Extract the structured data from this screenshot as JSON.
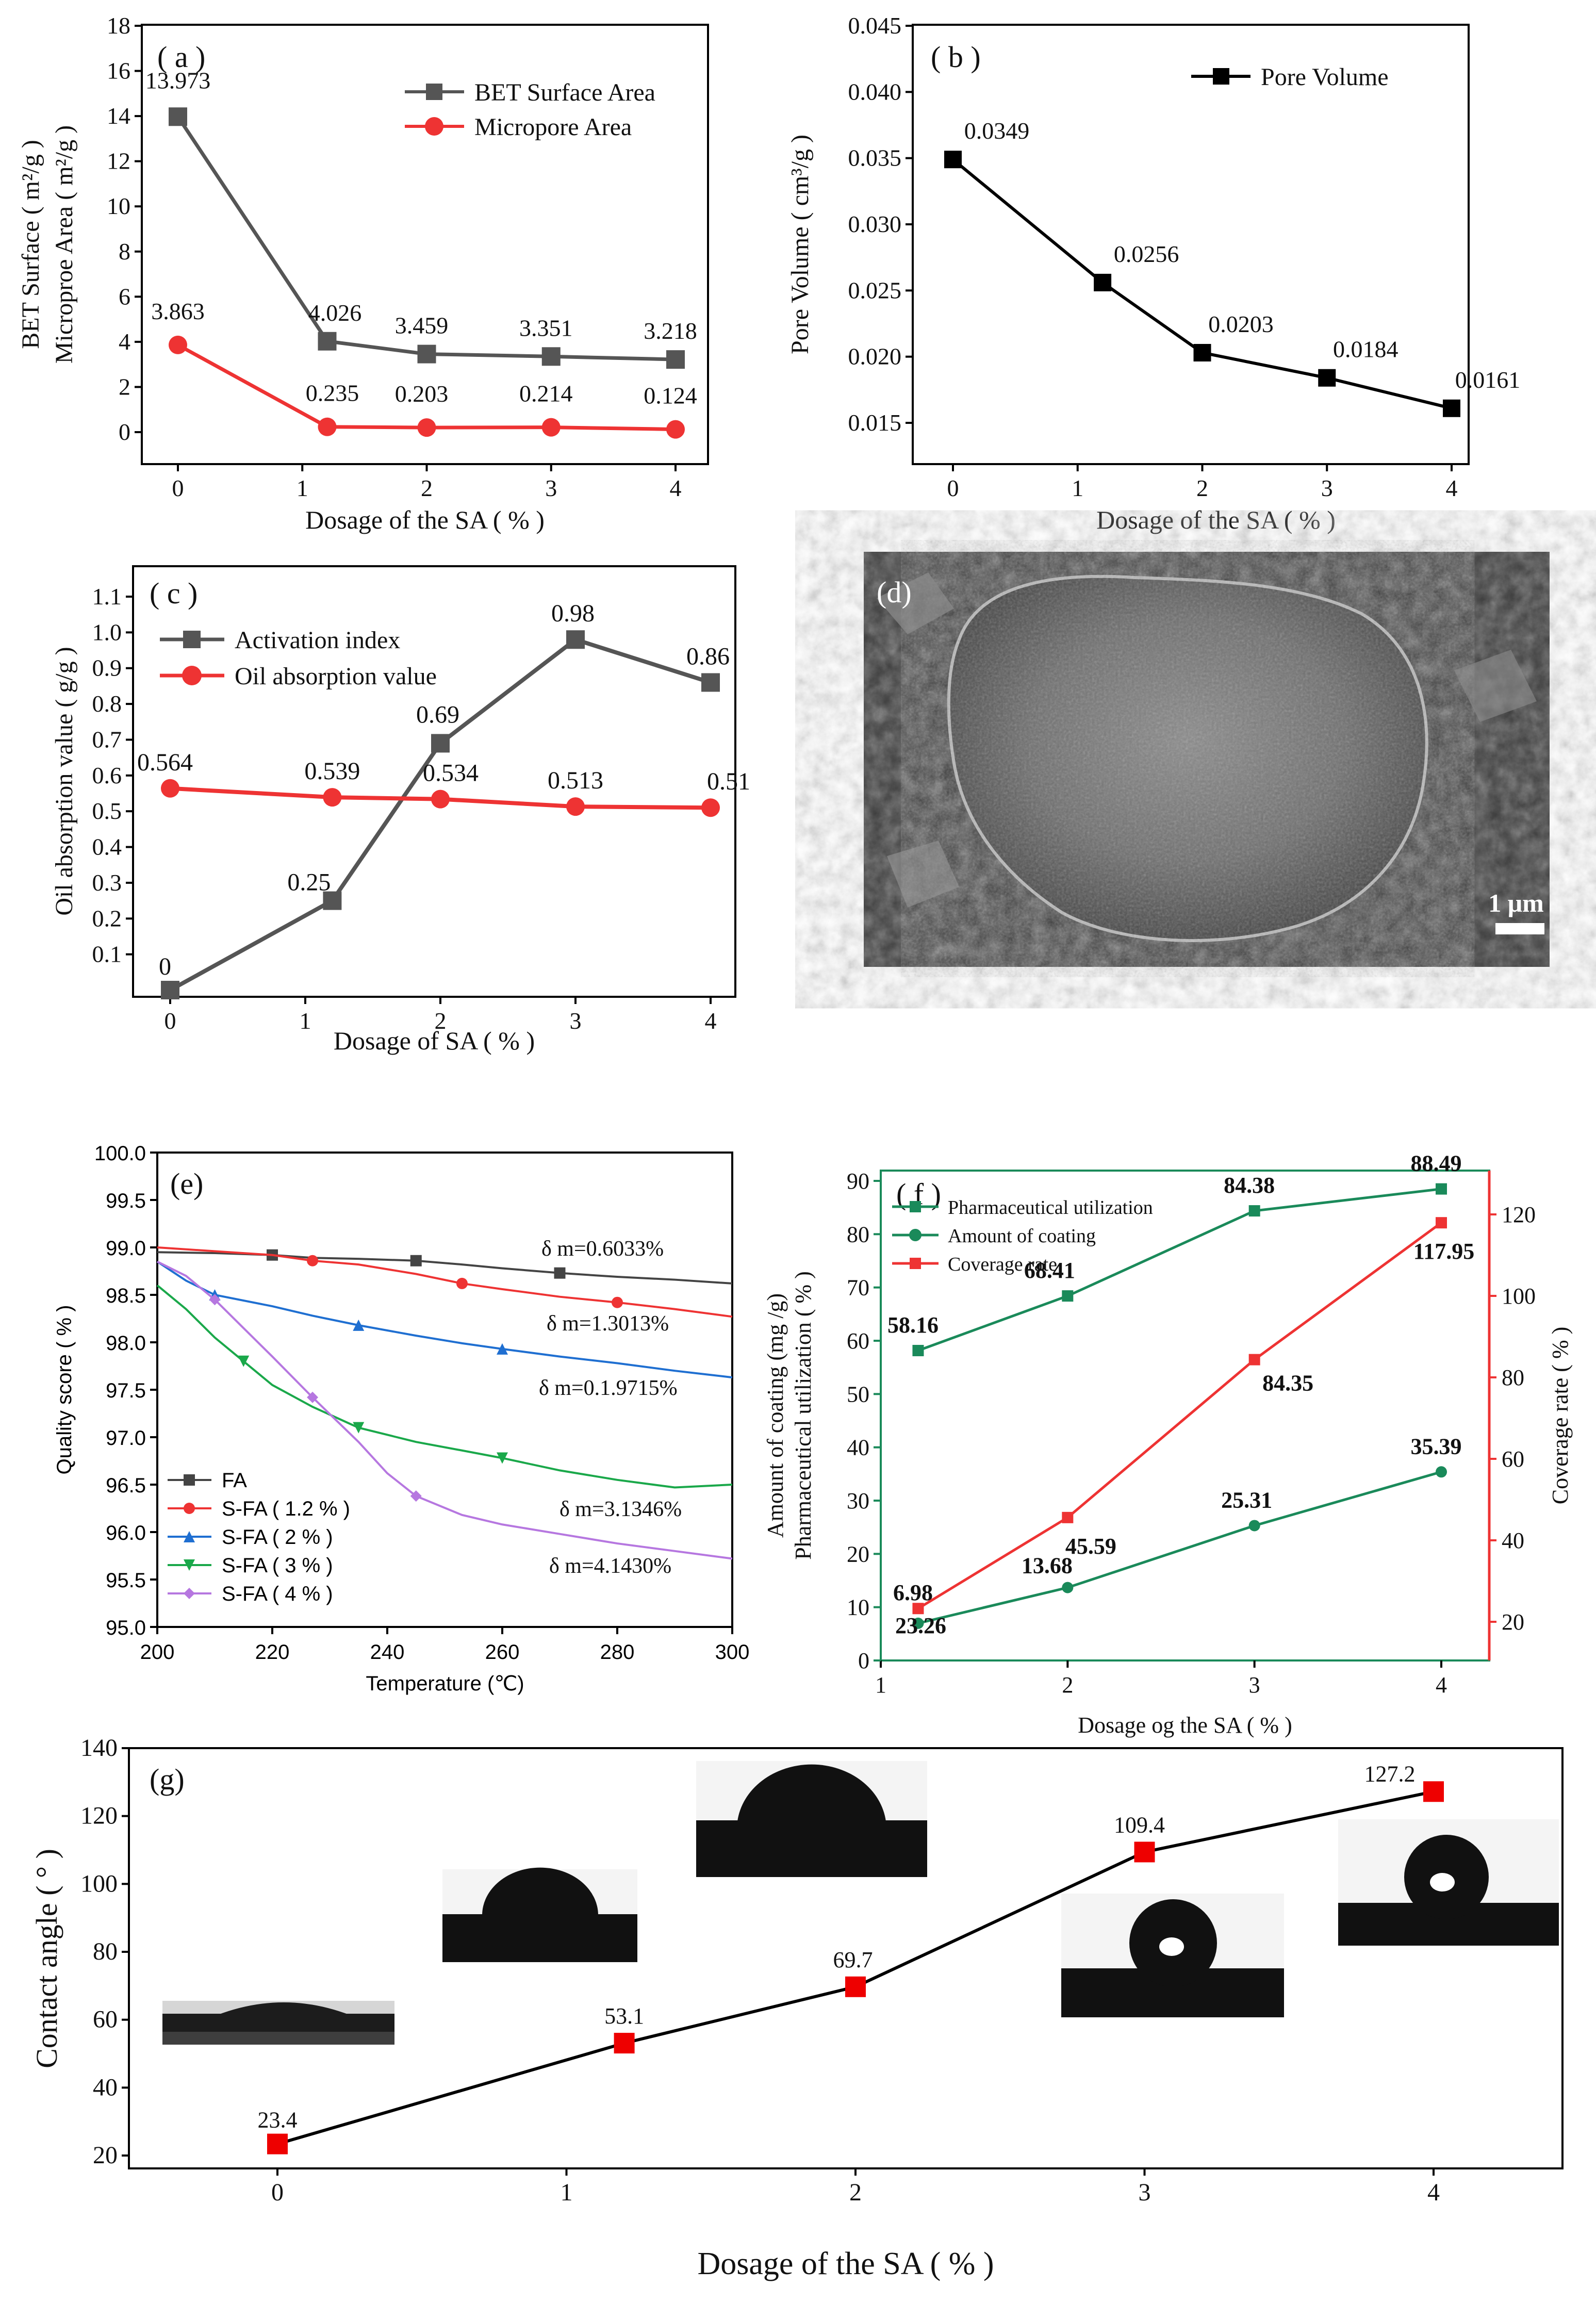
{
  "chart_data": [
    {
      "panel": "(a)",
      "type": "line",
      "categories": [
        "0",
        "1.2",
        "2",
        "3",
        "4"
      ],
      "x": [
        0,
        1.2,
        2,
        3,
        4
      ],
      "xlabel": "Dosage of the SA ( % )",
      "ylabel": [
        "BET Surface ( m²/g )",
        "Microproe Area ( m²/g )"
      ],
      "ylim": [
        -1,
        18
      ],
      "xticks": [
        "0",
        "1",
        "2",
        "3",
        "4"
      ],
      "yticks": [
        "0",
        "2",
        "4",
        "6",
        "8",
        "10",
        "12",
        "14",
        "16",
        "18"
      ],
      "series": [
        {
          "name": "BET Surface Area",
          "color": "#555555",
          "marker": "square",
          "values": [
            13.973,
            4.026,
            3.459,
            3.351,
            3.218
          ],
          "labels": [
            "13.973",
            "4.026",
            "3.459",
            "3.351",
            "3.218"
          ]
        },
        {
          "name": "Micropore Area",
          "color": "#ee3333",
          "marker": "circle",
          "values": [
            3.863,
            0.235,
            0.203,
            0.214,
            0.124
          ],
          "labels": [
            "3.863",
            "0.235",
            "0.203",
            "0.214",
            "0.124"
          ]
        }
      ]
    },
    {
      "panel": "(b)",
      "type": "line",
      "x": [
        0,
        1.2,
        2,
        3,
        4
      ],
      "xlabel": "Dosage of the SA ( % )",
      "ylabel": "Pore Volume ( cm³/g )",
      "ylim": [
        0.0125,
        0.045
      ],
      "xticks": [
        "0",
        "1",
        "2",
        "3",
        "4"
      ],
      "yticks": [
        "0.015",
        "0.020",
        "0.025",
        "0.030",
        "0.035",
        "0.040",
        "0.045"
      ],
      "series": [
        {
          "name": "Pore Volume",
          "color": "#000000",
          "marker": "square",
          "values": [
            0.0349,
            0.0256,
            0.0203,
            0.0184,
            0.0161
          ],
          "labels": [
            "0.0349",
            "0.0256",
            "0.0203",
            "0.0184",
            "0.0161"
          ]
        }
      ]
    },
    {
      "panel": "(c)",
      "type": "line",
      "x": [
        0,
        1.2,
        2,
        3,
        4
      ],
      "xlabel": "Dosage of SA ( % )",
      "ylabel": "Oil absorption value ( g/g )",
      "ylim": [
        0,
        1.2
      ],
      "xticks": [
        "0",
        "1",
        "2",
        "3",
        "4"
      ],
      "yticks": [
        "0.1",
        "0.2",
        "0.3",
        "0.4",
        "0.5",
        "0.6",
        "0.7",
        "0.8",
        "0.9",
        "1.0",
        "1.1"
      ],
      "series": [
        {
          "name": "Activation index",
          "color": "#555555",
          "marker": "square",
          "values": [
            0,
            0.25,
            0.69,
            0.98,
            0.86
          ],
          "labels": [
            "0",
            "0.25",
            "0.69",
            "0.98",
            "0.86"
          ]
        },
        {
          "name": "Oil absorption value",
          "color": "#ee3333",
          "marker": "circle",
          "values": [
            0.564,
            0.539,
            0.534,
            0.513,
            0.51
          ],
          "labels": [
            "0.564",
            "0.539",
            "0.534",
            "0.513",
            "0.51"
          ]
        }
      ]
    },
    {
      "panel": "(e)",
      "type": "line",
      "xlabel": "Temperature (℃)",
      "ylabel": "Quality score ( % )",
      "xlim": [
        200,
        300
      ],
      "ylim": [
        95.0,
        100.0
      ],
      "xticks": [
        "200",
        "220",
        "240",
        "260",
        "280",
        "300"
      ],
      "yticks": [
        "95.0",
        "95.5",
        "96.0",
        "96.5",
        "97.0",
        "97.5",
        "98.0",
        "98.5",
        "99.0",
        "99.5",
        "100.0"
      ],
      "series": [
        {
          "name": "FA",
          "color": "#444444",
          "marker": "square",
          "x": [
            200,
            210,
            220,
            227,
            235,
            245,
            253,
            260,
            270,
            280,
            290,
            300
          ],
          "values": [
            98.95,
            98.94,
            98.92,
            98.89,
            98.88,
            98.86,
            98.82,
            98.78,
            98.73,
            98.69,
            98.66,
            98.62
          ],
          "annotation": "δ m=0.6033%"
        },
        {
          "name": "S-FA ( 1.2 % )",
          "color": "#ee3333",
          "marker": "circle",
          "x": [
            200,
            210,
            220,
            227,
            235,
            245,
            253,
            260,
            270,
            280,
            290,
            300
          ],
          "values": [
            99.0,
            98.96,
            98.92,
            98.86,
            98.82,
            98.72,
            98.62,
            98.56,
            98.48,
            98.42,
            98.35,
            98.27
          ],
          "annotation": "δ m=1.3013%"
        },
        {
          "name": "S-FA ( 2 % )",
          "color": "#1f6fd1",
          "marker": "triangle-up",
          "x": [
            200,
            205,
            210,
            220,
            227,
            235,
            245,
            253,
            260,
            270,
            280,
            290,
            300
          ],
          "values": [
            98.85,
            98.65,
            98.5,
            98.38,
            98.28,
            98.18,
            98.07,
            97.99,
            97.93,
            97.85,
            97.78,
            97.7,
            97.63
          ],
          "annotation": "δ m=0.1.9715%"
        },
        {
          "name": "S-FA ( 3 % )",
          "color": "#1aa84a",
          "marker": "triangle-down",
          "x": [
            200,
            205,
            210,
            215,
            220,
            227,
            235,
            245,
            253,
            260,
            270,
            280,
            290,
            300
          ],
          "values": [
            98.6,
            98.35,
            98.05,
            97.8,
            97.55,
            97.32,
            97.1,
            96.95,
            96.86,
            96.78,
            96.65,
            96.55,
            96.47,
            96.5
          ],
          "annotation": "δ m=3.1346%"
        },
        {
          "name": "S-FA ( 4 % )",
          "color": "#b677e0",
          "marker": "diamond",
          "x": [
            200,
            205,
            210,
            215,
            220,
            227,
            235,
            240,
            245,
            253,
            260,
            270,
            280,
            290,
            300
          ],
          "values": [
            98.85,
            98.7,
            98.45,
            98.15,
            97.85,
            97.42,
            96.95,
            96.62,
            96.38,
            96.18,
            96.08,
            95.98,
            95.88,
            95.8,
            95.72
          ],
          "annotation": "δ m=4.1430%"
        }
      ]
    },
    {
      "panel": "(f)",
      "type": "line",
      "x": [
        1.2,
        2,
        3,
        4
      ],
      "xlabel": "Dosage og the SA ( % )",
      "ylabel": [
        "Amount of coating (mg /g)",
        "Pharmaceutical utilization ( % )"
      ],
      "ylabel_right": "Coverage rate ( % )",
      "xlim": [
        1,
        4.2
      ],
      "ylim": [
        0,
        90
      ],
      "ylim_right": [
        10,
        130
      ],
      "xticks": [
        "1",
        "2",
        "3",
        "4"
      ],
      "yticks": [
        "0",
        "10",
        "20",
        "30",
        "40",
        "50",
        "60",
        "70",
        "80",
        "90"
      ],
      "yticks_right": [
        "20",
        "40",
        "60",
        "80",
        "100",
        "120"
      ],
      "series": [
        {
          "name": "Pharmaceutical utilization",
          "color": "#1a8a5a",
          "marker": "square",
          "axis": "left",
          "values": [
            58.16,
            68.41,
            84.38,
            88.49
          ],
          "labels": [
            "58.16",
            "68.41",
            "84.38",
            "88.49"
          ]
        },
        {
          "name": "Amount of coating",
          "color": "#1a8a5a",
          "marker": "circle",
          "axis": "left",
          "values": [
            6.98,
            13.68,
            25.31,
            35.39
          ],
          "labels": [
            "6.98",
            "13.68",
            "25.31",
            "35.39"
          ]
        },
        {
          "name": "Coverage rate",
          "color": "#ee3333",
          "marker": "square",
          "axis": "right",
          "values": [
            23.26,
            45.59,
            84.35,
            117.95
          ],
          "labels": [
            "23.26",
            "45.59",
            "84.35",
            "117.95"
          ]
        }
      ]
    },
    {
      "panel": "(g)",
      "type": "line",
      "x": [
        0,
        1.2,
        2,
        3,
        4
      ],
      "xlabel": "Dosage of the SA ( % )",
      "ylabel": "Contact angle ( ° )",
      "xlim": [
        -0.5,
        4.45
      ],
      "ylim": [
        10,
        140
      ],
      "xticks": [
        "0",
        "1",
        "2",
        "3",
        "4"
      ],
      "yticks": [
        "20",
        "40",
        "60",
        "80",
        "100",
        "120",
        "140"
      ],
      "series": [
        {
          "name": "Contact angle",
          "color": "#000000",
          "marker_color": "#ee0000",
          "marker": "square",
          "values": [
            23.4,
            53.1,
            69.7,
            109.4,
            127.2
          ],
          "labels": [
            "23.4",
            "53.1",
            "69.7",
            "109.4",
            "127.2"
          ]
        }
      ]
    }
  ],
  "panel_d": {
    "label": "(d)",
    "scale_bar": "1 μm"
  },
  "panel_labels": {
    "a": "( a )",
    "b": "( b )",
    "c": "( c )",
    "e": "(e)",
    "f": "( f )",
    "g": "(g)"
  }
}
